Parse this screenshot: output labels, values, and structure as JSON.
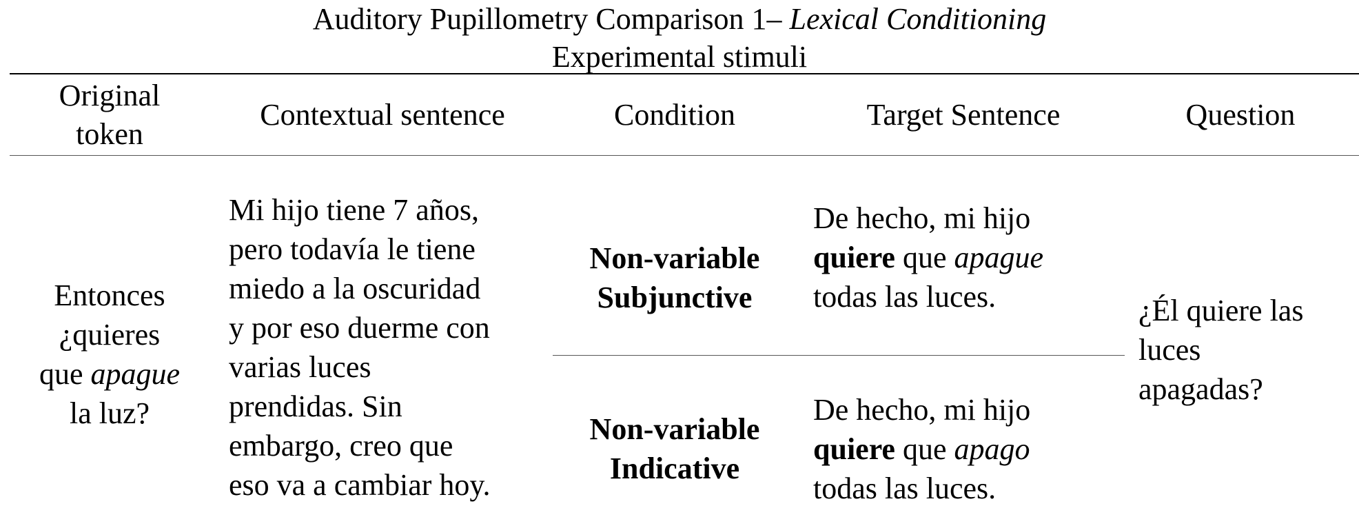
{
  "title": {
    "line1_prefix": "Auditory Pupillometry Comparison 1– ",
    "line1_italic": "Lexical Conditioning",
    "line2": "Experimental stimuli"
  },
  "table": {
    "headers": {
      "original_token_line1": "Original",
      "original_token_line2": "token",
      "contextual_sentence": "Contextual sentence",
      "condition": "Condition",
      "target_sentence": "Target Sentence",
      "question": "Question"
    },
    "original_token": {
      "line1": "Entonces",
      "line2": "¿quieres",
      "line3_prefix": "que ",
      "line3_italic": "apague",
      "line4": "la luz?"
    },
    "contextual_sentence_lines": [
      "Mi hijo tiene 7 años,",
      "pero todavía le tiene",
      "miedo a la oscuridad",
      "y por eso duerme con",
      "varias luces",
      "prendidas. Sin",
      "embargo, creo que",
      "eso va a cambiar hoy."
    ],
    "rows": [
      {
        "condition_line1": "Non-variable",
        "condition_line2": "Subjunctive",
        "target_line1": "De hecho, mi hijo",
        "target_bold": "quiere",
        "target_mid": " que ",
        "target_italic": "apague",
        "target_line3": "todas las luces."
      },
      {
        "condition_line1": "Non-variable",
        "condition_line2": "Indicative",
        "target_line1": "De hecho, mi hijo",
        "target_bold": "quiere",
        "target_mid": " que ",
        "target_italic": "apago",
        "target_line3": "todas las luces."
      }
    ],
    "question_lines": [
      "¿Él quiere las",
      "luces",
      "apagadas?"
    ]
  }
}
